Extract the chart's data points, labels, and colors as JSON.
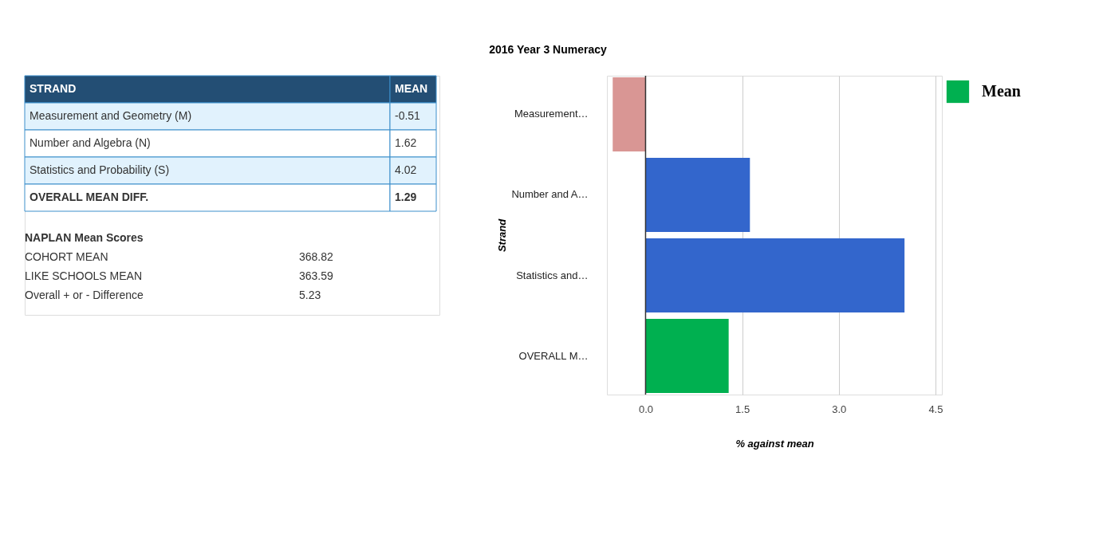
{
  "chart_data": [
    {
      "type": "other",
      "annotations": [
        "STRAND",
        "MEAN",
        "Measurement and Geometry (M)",
        "-0.51",
        "Number and Algebra (N)",
        "1.62",
        "Statistics and Probability (S)",
        "4.02",
        "OVERALL MEAN DIFF.",
        "1.29",
        "NAPLAN Mean Scores",
        "COHORT MEAN",
        "368.82",
        "LIKE SCHOOLS MEAN",
        "363.59",
        "Overall + or - Difference",
        "5.23"
      ]
    },
    {
      "type": "bar",
      "orientation": "horizontal",
      "title": "2016 Year 3 Numeracy",
      "xlabel": "% against mean",
      "ylabel": "Strand",
      "categories": [
        "Measurement…",
        "Number and A…",
        "Statistics and…",
        "OVERALL M…"
      ],
      "series": [
        {
          "name": "Mean",
          "color": "#00b050",
          "colors": [
            "#d99694",
            "#3366cc",
            "#3366cc",
            "#00b050"
          ],
          "values": [
            -0.51,
            1.62,
            4.02,
            1.29
          ]
        }
      ],
      "xlim": [
        -0.6,
        4.6
      ],
      "xticks": [
        {
          "value": 0,
          "label": "0.0"
        },
        {
          "value": 1.5,
          "label": "1.5"
        },
        {
          "value": 3,
          "label": "3.0"
        },
        {
          "value": 4.5,
          "label": "4.5"
        }
      ],
      "ref_lines": [
        {
          "axis": "x",
          "value": 0,
          "color": "#333333"
        }
      ],
      "grid": "x",
      "legend": "top right"
    }
  ]
}
